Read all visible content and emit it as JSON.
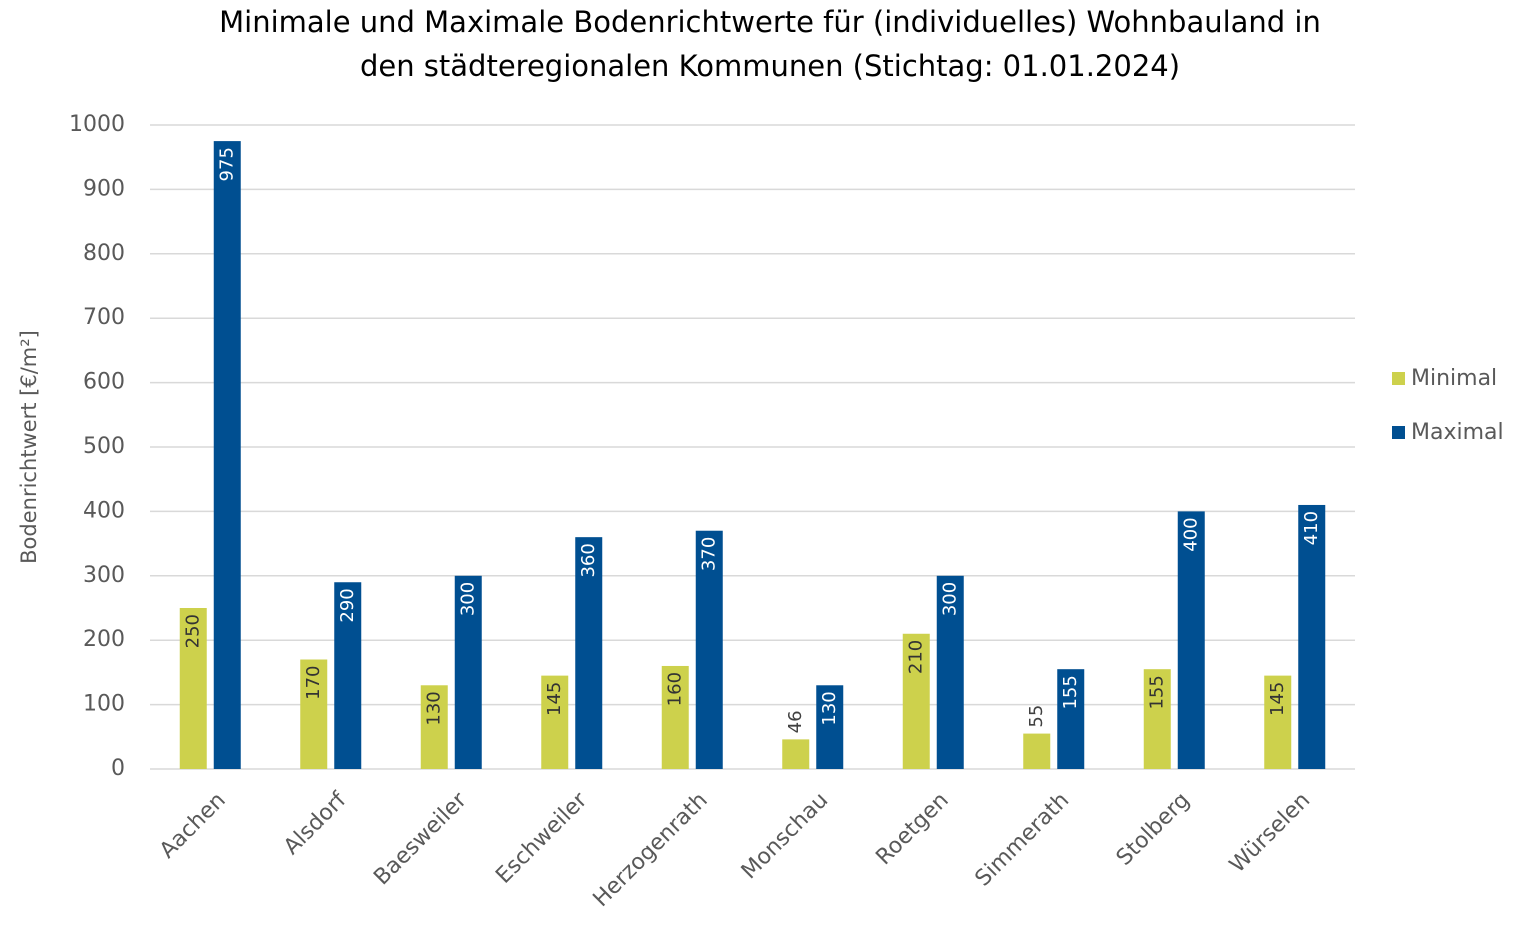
{
  "chart_data": {
    "type": "bar",
    "title": [
      "Minimale und Maximale Bodenrichtwerte für (individuelles) Wohnbauland in",
      "den städteregionalen Kommunen (Stichtag: 01.01.2024)"
    ],
    "y_label": "Bodenrichtwert [€/m²]",
    "categories": [
      "Aachen",
      "Alsdorf",
      "Baesweiler",
      "Eschweiler",
      "Herzogenrath",
      "Monschau",
      "Roetgen",
      "Simmerath",
      "Stolberg",
      "Würselen"
    ],
    "series": [
      {
        "name": "Minimal",
        "color": "#cdd14c",
        "label_color": "#333333",
        "values": [
          250,
          170,
          130,
          145,
          160,
          46,
          210,
          55,
          155,
          145
        ]
      },
      {
        "name": "Maximal",
        "color": "#004f91",
        "label_color": "#ffffff",
        "values": [
          975,
          290,
          300,
          360,
          370,
          130,
          300,
          155,
          400,
          410
        ]
      }
    ],
    "ylim": [
      0,
      1000
    ],
    "yticks": [
      0,
      100,
      200,
      300,
      400,
      500,
      600,
      700,
      800,
      900,
      1000
    ],
    "grid": true,
    "legend": "right"
  }
}
